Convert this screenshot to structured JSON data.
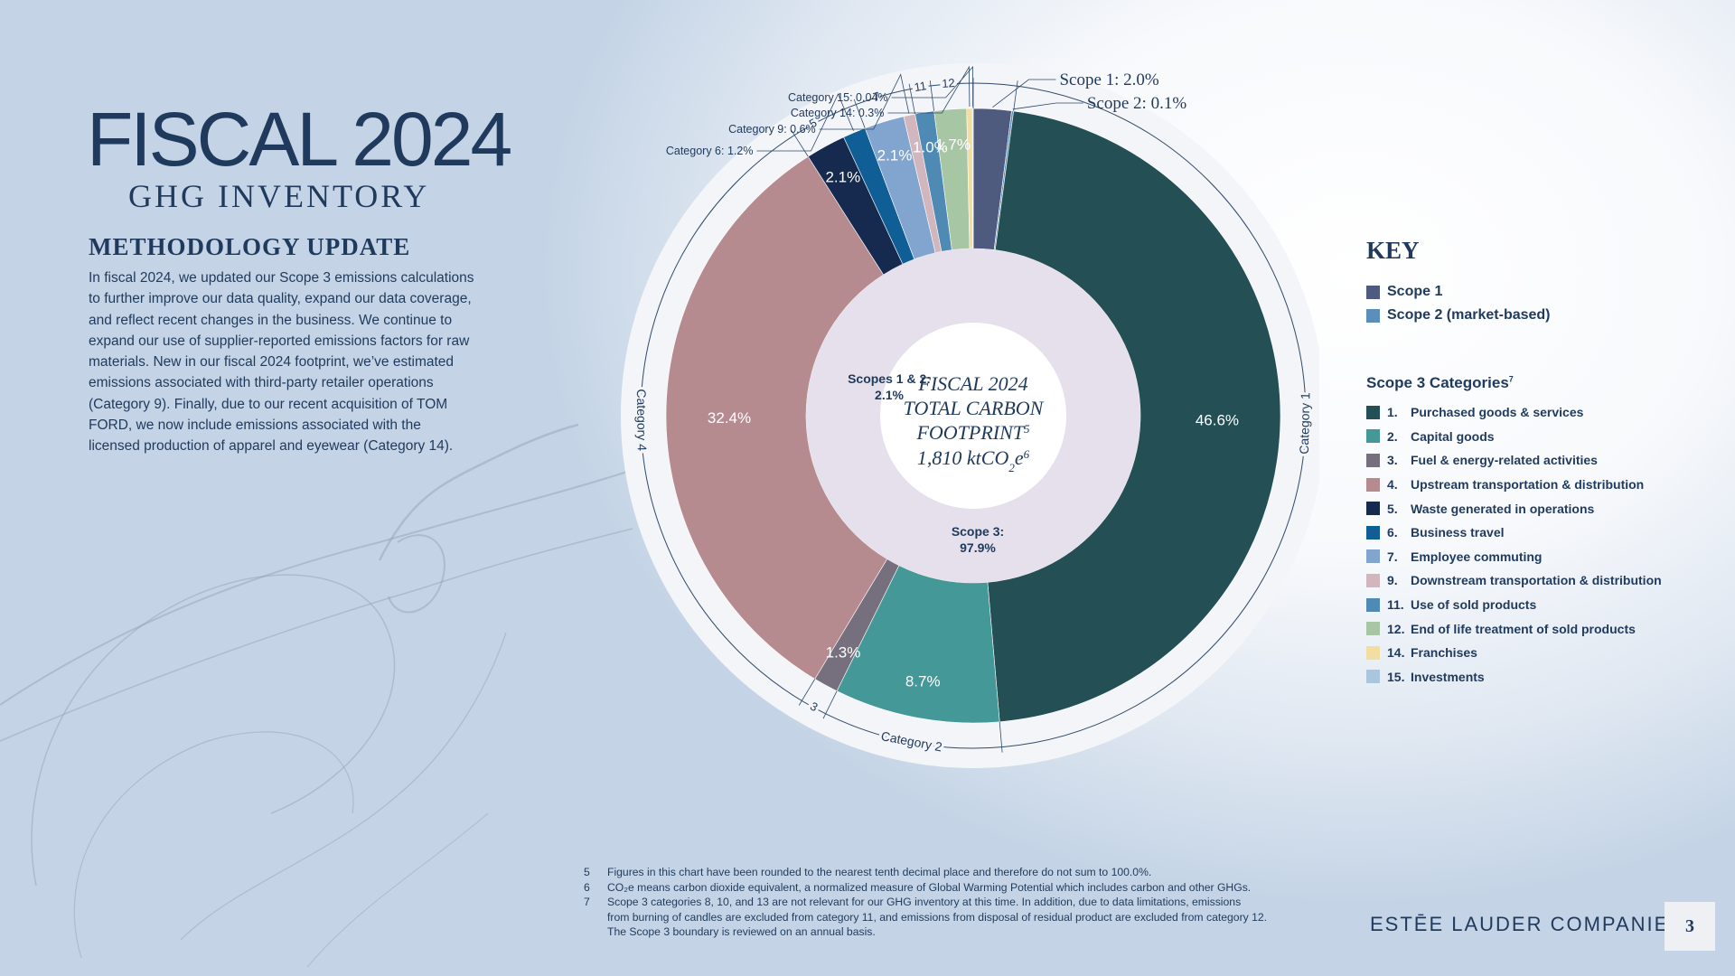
{
  "header": {
    "title": "FISCAL 2024",
    "subtitle": "GHG INVENTORY"
  },
  "methodology": {
    "title": "METHODOLOGY UPDATE",
    "lines": [
      "In fiscal 2024, we updated our Scope 3 emissions calculations",
      "to further improve our data quality, expand our data coverage,",
      "and reflect recent changes in the business. We continue to",
      "expand our use of supplier-reported emissions factors for raw",
      "materials. New in our fiscal 2024 footprint, we’ve estimated",
      "emissions associated with third-party retailer operations",
      "(Category 9). Finally, due to our recent acquisition of TOM",
      "FORD, we now include emissions associated with the",
      "licensed production of apparel and eyewear (Category 14)."
    ]
  },
  "chart_data": {
    "type": "pie",
    "center": {
      "lines": [
        "FISCAL 2024",
        "TOTAL CARBON",
        "FOOTPRINT",
        "1,810 ktCO"
      ],
      "sup": "5",
      "sub": "2",
      "suffix": "e",
      "suffix_sup": "6"
    },
    "inner_ring": [
      {
        "label": "Scopes 1 & 2:",
        "value": 2.1,
        "value_label": "2.1%",
        "color": "#e5e0eb"
      },
      {
        "label": "Scope 3:",
        "value": 97.9,
        "value_label": "97.9%",
        "color": "#e5e0eb"
      }
    ],
    "slices": [
      {
        "id": "scope1",
        "value": 2.0,
        "color": "#4f5b7e",
        "outer": "Scope 1: 2.0%"
      },
      {
        "id": "scope2",
        "value": 0.1,
        "color": "#5b8fb9",
        "outer": "Scope 2: 0.1%"
      },
      {
        "id": "cat1",
        "value": 46.6,
        "color": "#244f55",
        "label": "46.6%",
        "ring": "Category 1"
      },
      {
        "id": "cat2",
        "value": 8.7,
        "color": "#449898",
        "label": "8.7%",
        "ring": "Category 2"
      },
      {
        "id": "cat3",
        "value": 1.3,
        "color": "#76707e",
        "label": "1.3%",
        "ring": "3"
      },
      {
        "id": "cat4",
        "value": 32.4,
        "color": "#b68b90",
        "label": "32.4%",
        "ring": "Category 4"
      },
      {
        "id": "cat5",
        "value": 2.1,
        "color": "#152a4e",
        "label": "2.1%",
        "ring": "5"
      },
      {
        "id": "cat6",
        "value": 1.2,
        "color": "#0f5f96",
        "outer": "Category 6: 1.2%"
      },
      {
        "id": "cat7",
        "value": 2.1,
        "color": "#82a5cf",
        "label": "2.1%",
        "ring": "7"
      },
      {
        "id": "cat9",
        "value": 0.6,
        "color": "#d2b6bd",
        "outer": "Category 9: 0.6%"
      },
      {
        "id": "cat11",
        "value": 1.0,
        "color": "#4f8ab4",
        "label": "1.0%",
        "ring": "11"
      },
      {
        "id": "cat12",
        "value": 1.7,
        "color": "#a7c6a3",
        "label": "1.7%",
        "ring": "12"
      },
      {
        "id": "cat14",
        "value": 0.3,
        "color": "#f1dea0",
        "outer": "Category 14: 0.3%"
      },
      {
        "id": "cat15",
        "value": 0.04,
        "color": "#a9c6e0",
        "outer": "Category 15: 0.04%"
      }
    ]
  },
  "key": {
    "title": "KEY",
    "scopes": [
      {
        "label": "Scope 1",
        "color": "#4f5b7e"
      },
      {
        "label": "Scope 2 (market-based)",
        "color": "#5b8fb9"
      }
    ],
    "scope3_title": "Scope 3 Categories",
    "scope3_sup": "7",
    "categories": [
      {
        "num": "1.",
        "label": "Purchased goods & services",
        "color": "#244f55"
      },
      {
        "num": "2.",
        "label": "Capital goods",
        "color": "#449898"
      },
      {
        "num": "3.",
        "label": "Fuel & energy-related activities",
        "color": "#76707e"
      },
      {
        "num": "4.",
        "label": "Upstream transportation & distribution",
        "color": "#b68b90"
      },
      {
        "num": "5.",
        "label": "Waste generated in operations",
        "color": "#152a4e"
      },
      {
        "num": "6.",
        "label": "Business travel",
        "color": "#0f5f96"
      },
      {
        "num": "7.",
        "label": "Employee commuting",
        "color": "#82a5cf"
      },
      {
        "num": "9.",
        "label": "Downstream transportation & distribution",
        "color": "#d2b6bd"
      },
      {
        "num": "11.",
        "label": "Use of sold products",
        "color": "#4f8ab4"
      },
      {
        "num": "12.",
        "label": "End of life treatment of sold products",
        "color": "#a7c6a3"
      },
      {
        "num": "14.",
        "label": "Franchises",
        "color": "#f1dea0"
      },
      {
        "num": "15.",
        "label": "Investments",
        "color": "#a9c6e0"
      }
    ]
  },
  "footnotes": [
    {
      "n": "5",
      "lines": [
        "Figures in this chart have been rounded to the nearest tenth decimal place and therefore do not sum to 100.0%."
      ]
    },
    {
      "n": "6",
      "lines": [
        "CO₂e means carbon dioxide equivalent, a normalized measure of Global Warming Potential which includes carbon and other GHGs."
      ]
    },
    {
      "n": "7",
      "lines": [
        "Scope 3 categories 8, 10, and 13 are not relevant for our GHG inventory at this time. In addition, due to data limitations, emissions",
        "from burning of candles are excluded from category 11, and emissions from disposal of residual product are excluded from category 12.",
        "The Scope 3 boundary is reviewed on an annual basis."
      ]
    }
  ],
  "footer": {
    "brand": "ESTĒE LAUDER COMPANIES",
    "page": "3"
  }
}
